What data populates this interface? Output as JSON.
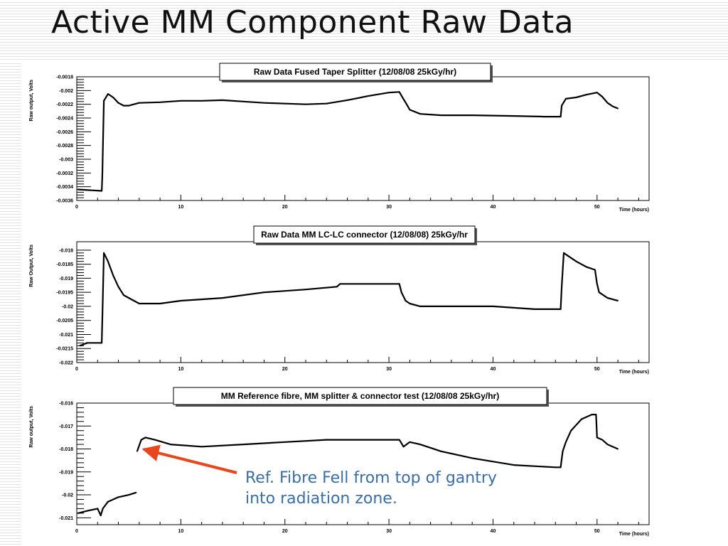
{
  "slide": {
    "title": "Active MM Component Raw Data"
  },
  "annotation": {
    "line1": "Ref. Fibre Fell from top of gantry",
    "line2": "into radiation zone."
  },
  "colors": {
    "annotation_text": "#3a6ea5",
    "arrow": "#e8461c",
    "trace": "#000000"
  },
  "chart_data": [
    {
      "type": "scatter",
      "title": "Raw Data Fused Taper Splitter (12/08/08 25kGy/hr)",
      "xlabel": "Time (hours)",
      "ylabel": "Raw output, Volts",
      "xlim": [
        0,
        55
      ],
      "ylim": [
        -0.0036,
        -0.0018
      ],
      "xticks": [
        0,
        10,
        20,
        30,
        40,
        50
      ],
      "yticks": [
        -0.0018,
        -0.002,
        -0.0022,
        -0.0024,
        -0.0026,
        -0.0028,
        -0.003,
        -0.0032,
        -0.0034,
        -0.0036
      ],
      "ytick_labels": [
        "-0.0018",
        "-0.002",
        "-0.0022",
        "-0.0024",
        "-0.0026",
        "-0.0028",
        "-0.003",
        "-0.0032",
        "-0.0034",
        "-0.0036"
      ],
      "series": [
        {
          "x": [
            0.1,
            2.4,
            2.45,
            2.6,
            3.0,
            3.5,
            4.0,
            4.5,
            5.0,
            6.0,
            8.0,
            10.0,
            12.0,
            14.0,
            16.0,
            18.0,
            20.0,
            22.0,
            24.0,
            26.0,
            28.0,
            30.0,
            31.0,
            31.3,
            31.7,
            32.0,
            33.0,
            35.0,
            38.0,
            42.0,
            45.0,
            46.0,
            46.5,
            46.6,
            47.0,
            48.0,
            49.0,
            50.0,
            50.5,
            51.0,
            51.5,
            52.0
          ],
          "y": [
            -0.00344,
            -0.00346,
            -0.00325,
            -0.00215,
            -0.00205,
            -0.0021,
            -0.00218,
            -0.00222,
            -0.00222,
            -0.00218,
            -0.00217,
            -0.00215,
            -0.00215,
            -0.00214,
            -0.00216,
            -0.00218,
            -0.00219,
            -0.0022,
            -0.00219,
            -0.00214,
            -0.00208,
            -0.00203,
            -0.00202,
            -0.0021,
            -0.0022,
            -0.00228,
            -0.00234,
            -0.00236,
            -0.00236,
            -0.00237,
            -0.00238,
            -0.00238,
            -0.00238,
            -0.00222,
            -0.00212,
            -0.0021,
            -0.00206,
            -0.00203,
            -0.00209,
            -0.00218,
            -0.00223,
            -0.00226
          ]
        }
      ]
    },
    {
      "type": "scatter",
      "title": "Raw Data MM LC-LC connector (12/08/08) 25kGy/hr",
      "xlabel": "Time (hours)",
      "ylabel": "Raw Output, Volts",
      "xlim": [
        0,
        55
      ],
      "ylim": [
        -0.022,
        -0.0177
      ],
      "xticks": [
        0,
        10,
        20,
        30,
        40,
        50
      ],
      "yticks": [
        -0.018,
        -0.0185,
        -0.019,
        -0.0195,
        -0.02,
        -0.0205,
        -0.021,
        -0.0215,
        -0.022
      ],
      "ytick_labels": [
        "-0.018",
        "-0.0185",
        "-0.019",
        "-0.0195",
        "-0.02",
        "-0.0205",
        "-0.021",
        "-0.0215",
        "-0.022"
      ],
      "series": [
        {
          "x": [
            0.3,
            1.0,
            2.4,
            2.45,
            2.6,
            3.0,
            3.5,
            4.0,
            4.5,
            5.0,
            6.0,
            8.0,
            10.0,
            14.0,
            18.0,
            22.0,
            25.0,
            25.3,
            25.6,
            28.0,
            31.0,
            31.2,
            31.6,
            32.0,
            33.0,
            35.0,
            40.0,
            44.0,
            46.5,
            46.6,
            46.8,
            47.2,
            48.0,
            49.0,
            49.8,
            50.0,
            50.2,
            51.0,
            52.0
          ],
          "y": [
            -0.0214,
            -0.0213,
            -0.0213,
            -0.0205,
            -0.0181,
            -0.0184,
            -0.0189,
            -0.0193,
            -0.0196,
            -0.0197,
            -0.0199,
            -0.0199,
            -0.0198,
            -0.0197,
            -0.0195,
            -0.0194,
            -0.0193,
            -0.0192,
            -0.0192,
            -0.0192,
            -0.0192,
            -0.0195,
            -0.0198,
            -0.0199,
            -0.02,
            -0.02,
            -0.02,
            -0.0201,
            -0.0201,
            -0.0193,
            -0.0181,
            -0.0182,
            -0.0184,
            -0.0186,
            -0.0187,
            -0.0192,
            -0.0195,
            -0.0197,
            -0.0198
          ]
        }
      ]
    },
    {
      "type": "scatter",
      "title": "MM Reference fibre, MM splitter & connector test (12/08/08 25kGy/hr)",
      "xlabel": "Time (hours)",
      "ylabel": "Raw output, Volts",
      "xlim": [
        0,
        55
      ],
      "ylim": [
        -0.0213,
        -0.016
      ],
      "xticks": [
        0,
        10,
        20,
        30,
        40,
        50
      ],
      "yticks": [
        -0.016,
        -0.017,
        -0.018,
        -0.019,
        -0.02,
        -0.021
      ],
      "ytick_labels": [
        "-0.016",
        "-0.017",
        "-0.018",
        "-0.019",
        "-0.02",
        "-0.021"
      ],
      "series": [
        {
          "x": [
            0.1,
            1.0,
            2.0,
            2.3,
            2.5,
            3.0,
            4.0,
            5.0,
            5.7
          ],
          "y": [
            -0.0208,
            -0.0207,
            -0.0206,
            -0.0209,
            -0.0206,
            -0.0203,
            -0.0201,
            -0.02,
            -0.0199
          ]
        },
        {
          "x": [
            5.8,
            6.2,
            6.6,
            7.5,
            9.0,
            12.0,
            16.0,
            20.0,
            24.0,
            28.0,
            31.0,
            31.4,
            32.0,
            33.0,
            35.0,
            38.0,
            42.0,
            46.0,
            46.5,
            46.7,
            47.0,
            47.5,
            48.5,
            49.5,
            49.9,
            50.0,
            50.5,
            51.0,
            52.0
          ],
          "y": [
            -0.0181,
            -0.0176,
            -0.0175,
            -0.0176,
            -0.0178,
            -0.0179,
            -0.0178,
            -0.0177,
            -0.0176,
            -0.0176,
            -0.0176,
            -0.0179,
            -0.0177,
            -0.0178,
            -0.0181,
            -0.0184,
            -0.0187,
            -0.0188,
            -0.0188,
            -0.0181,
            -0.0177,
            -0.0172,
            -0.0167,
            -0.0165,
            -0.0165,
            -0.0175,
            -0.0176,
            -0.0178,
            -0.018
          ]
        }
      ]
    }
  ]
}
